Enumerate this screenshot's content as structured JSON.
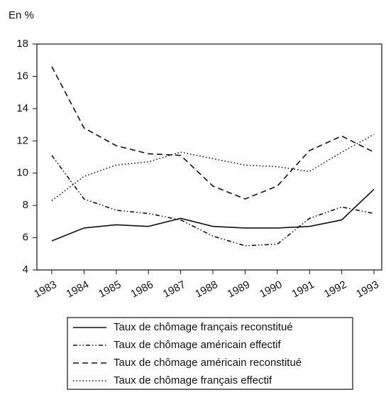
{
  "chart_data": {
    "type": "line",
    "y_unit_label": "En %",
    "categories": [
      "1983",
      "1984",
      "1985",
      "1986",
      "1987",
      "1988",
      "1989",
      "1990",
      "1991",
      "1992",
      "1993"
    ],
    "series": [
      {
        "name": "Taux de chômage français reconstitué",
        "color": "#111111",
        "dash": "solid",
        "values": [
          5.8,
          6.6,
          6.8,
          6.7,
          7.2,
          6.7,
          6.6,
          6.6,
          6.7,
          7.1,
          9.0
        ]
      },
      {
        "name": "Taux de chômage américain effectif",
        "color": "#111111",
        "dash": "dashdotdot",
        "values": [
          11.1,
          8.4,
          7.7,
          7.5,
          7.1,
          6.1,
          5.5,
          5.6,
          7.2,
          7.9,
          7.5
        ]
      },
      {
        "name": "Taux de chômage américain reconstitué",
        "color": "#111111",
        "dash": "dashed",
        "values": [
          16.6,
          12.8,
          11.7,
          11.2,
          11.1,
          9.2,
          8.4,
          9.2,
          11.4,
          12.3,
          11.3
        ]
      },
      {
        "name": "Taux de chômage français effectif",
        "color": "#111111",
        "dash": "dotted",
        "values": [
          8.3,
          9.8,
          10.5,
          10.7,
          11.3,
          10.9,
          10.5,
          10.4,
          10.1,
          11.3,
          12.4
        ]
      }
    ],
    "ylim": [
      4,
      18
    ],
    "yticks": [
      4,
      6,
      8,
      10,
      12,
      14,
      16,
      18
    ],
    "grid": false
  }
}
